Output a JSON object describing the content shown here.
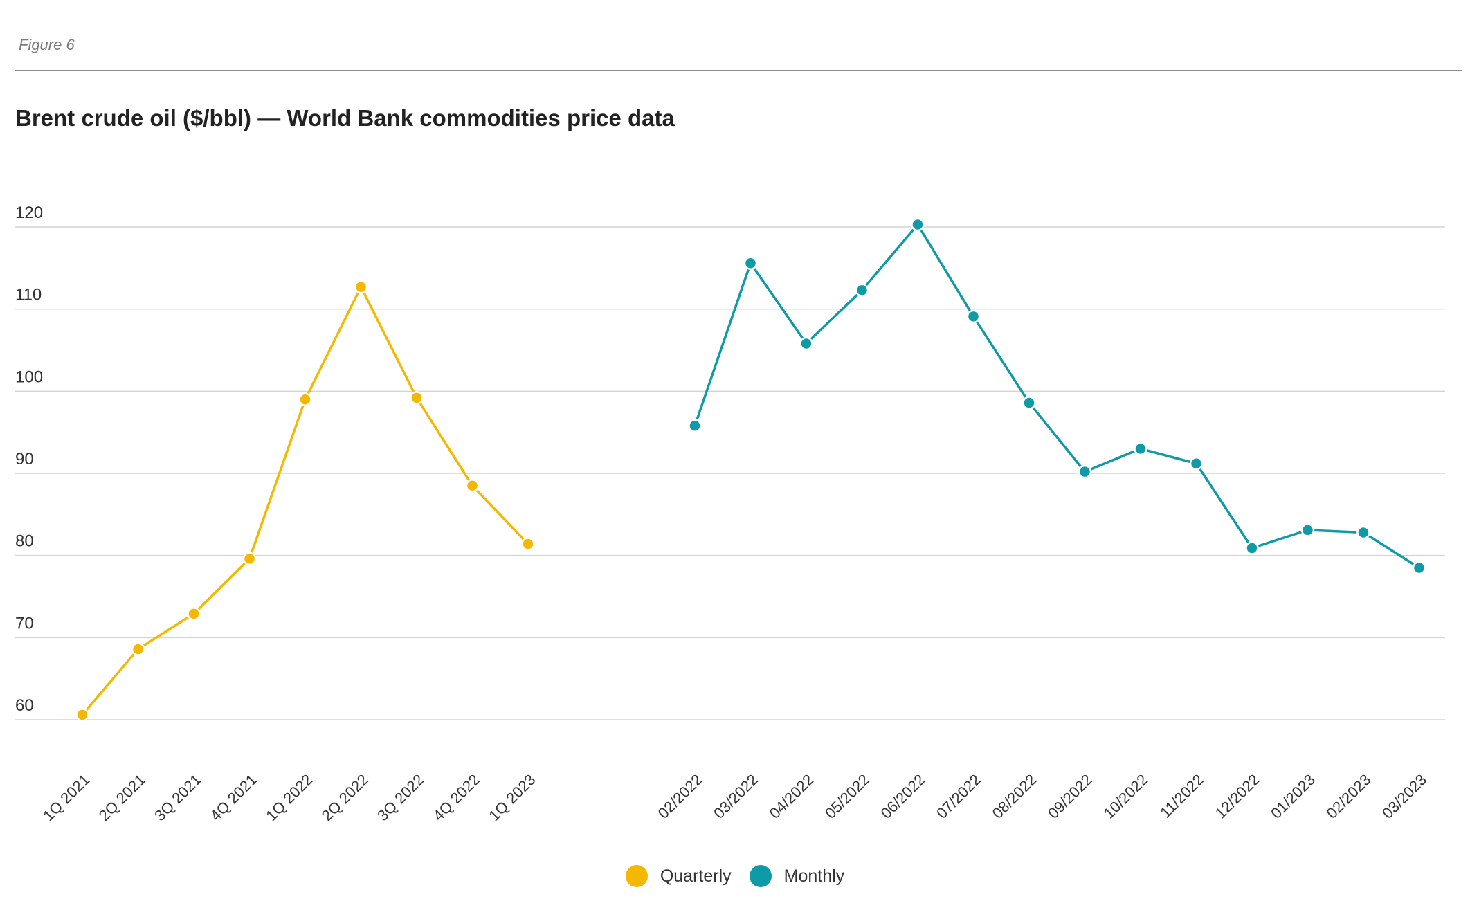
{
  "figure_label": "Figure 6",
  "chart_data": {
    "type": "line",
    "title": "Brent crude oil ($/bbl) — World Bank commodities price data",
    "xlabel": "",
    "ylabel": "",
    "ylim": [
      60,
      120
    ],
    "yticks": [
      120,
      110,
      100,
      90,
      80,
      70,
      60
    ],
    "grid": true,
    "legend_position": "bottom",
    "series": [
      {
        "name": "Quarterly",
        "color": "#f5b800",
        "x": [
          "1Q 2021",
          "2Q 2021",
          "3Q 2021",
          "4Q 2021",
          "1Q 2022",
          "2Q 2022",
          "3Q 2022",
          "4Q 2022",
          "1Q 2023"
        ],
        "values": [
          60.6,
          68.6,
          72.9,
          79.6,
          99.0,
          112.7,
          99.2,
          88.5,
          81.4
        ]
      },
      {
        "name": "Monthly",
        "color": "#0f9aa8",
        "x": [
          "02/2022",
          "03/2022",
          "04/2022",
          "05/2022",
          "06/2022",
          "07/2022",
          "08/2022",
          "09/2022",
          "10/2022",
          "11/2022",
          "12/2022",
          "01/2023",
          "02/2023",
          "03/2023"
        ],
        "values": [
          95.8,
          115.6,
          105.8,
          112.3,
          120.3,
          109.1,
          98.6,
          90.2,
          93.0,
          91.2,
          80.9,
          83.1,
          82.8,
          78.5
        ]
      }
    ]
  },
  "legend": {
    "items": [
      {
        "label": "Quarterly",
        "color": "#f5b800"
      },
      {
        "label": "Monthly",
        "color": "#0f9aa8"
      }
    ]
  }
}
